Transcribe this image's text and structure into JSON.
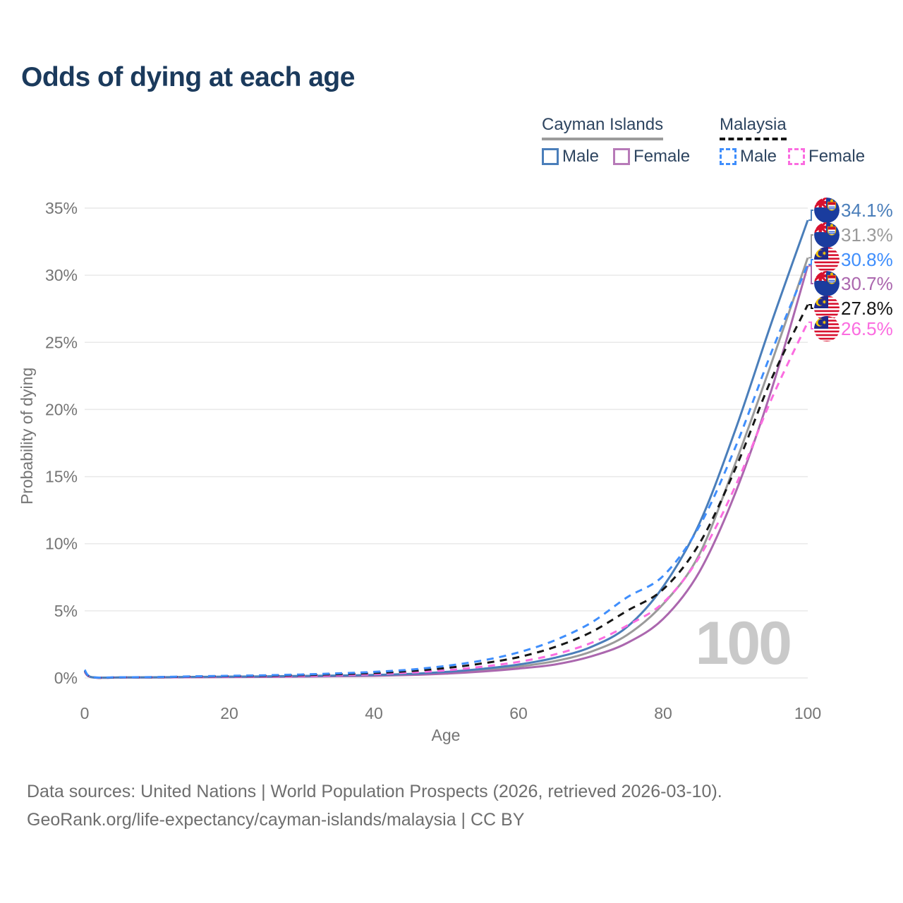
{
  "title": "Odds of dying at each age",
  "legend": {
    "groups": [
      {
        "label": "Cayman Islands",
        "line_style": "solid",
        "underline_color": "#9b9b9b",
        "items": [
          {
            "label": "Male",
            "color": "#4a7eba"
          },
          {
            "label": "Female",
            "color": "#b77ab8"
          }
        ]
      },
      {
        "label": "Malaysia",
        "line_style": "dashed",
        "underline_color": "#151515",
        "items": [
          {
            "label": "Male",
            "color": "#3f8efc"
          },
          {
            "label": "Female",
            "color": "#fb6ce0"
          }
        ]
      }
    ]
  },
  "chart_data": {
    "type": "line",
    "title": "Odds of dying at each age",
    "xlabel": "Age",
    "ylabel": "Probability of dying",
    "xlim": [
      0,
      100
    ],
    "ylim": [
      0,
      35
    ],
    "x_ticks": [
      0,
      20,
      40,
      60,
      80,
      100
    ],
    "y_ticks": [
      "0%",
      "5%",
      "10%",
      "15%",
      "20%",
      "25%",
      "30%",
      "35%"
    ],
    "grid": "horizontal",
    "legend_position": "top-right",
    "watermark": "100",
    "x": [
      0,
      1,
      5,
      10,
      15,
      20,
      25,
      30,
      35,
      40,
      45,
      50,
      55,
      60,
      65,
      70,
      75,
      80,
      85,
      90,
      95,
      100
    ],
    "series": [
      {
        "name": "Cayman Islands Male",
        "style": "solid",
        "color": "#4a7eba",
        "end_value_pct": 34.1,
        "values": [
          0.55,
          0.06,
          0.04,
          0.05,
          0.08,
          0.1,
          0.12,
          0.15,
          0.18,
          0.22,
          0.3,
          0.45,
          0.68,
          1.0,
          1.5,
          2.3,
          3.8,
          6.8,
          11.5,
          18.5,
          26.5,
          34.1
        ]
      },
      {
        "name": "Cayman Islands Both sexes",
        "style": "solid",
        "color": "#9a9a9a",
        "end_value_pct": 31.3,
        "values": [
          0.5,
          0.05,
          0.04,
          0.04,
          0.07,
          0.09,
          0.1,
          0.13,
          0.16,
          0.19,
          0.26,
          0.38,
          0.57,
          0.85,
          1.25,
          1.95,
          3.2,
          5.5,
          9.2,
          16.0,
          23.5,
          31.3
        ]
      },
      {
        "name": "Cayman Islands Female",
        "style": "solid",
        "color": "#ab67ae",
        "end_value_pct": 30.7,
        "values": [
          0.45,
          0.05,
          0.03,
          0.04,
          0.05,
          0.07,
          0.08,
          0.1,
          0.13,
          0.16,
          0.22,
          0.32,
          0.48,
          0.7,
          1.0,
          1.6,
          2.6,
          4.4,
          7.9,
          13.8,
          21.5,
          30.7
        ]
      },
      {
        "name": "Malaysia Male",
        "style": "dashed",
        "color": "#3f8efc",
        "end_value_pct": 30.8,
        "values": [
          0.6,
          0.07,
          0.05,
          0.07,
          0.12,
          0.16,
          0.2,
          0.26,
          0.34,
          0.45,
          0.62,
          0.9,
          1.3,
          1.9,
          2.8,
          4.1,
          6.0,
          7.6,
          11.3,
          17.2,
          24.3,
          30.8
        ]
      },
      {
        "name": "Malaysia Both sexes",
        "style": "dashed",
        "color": "#161616",
        "end_value_pct": 27.8,
        "values": [
          0.55,
          0.06,
          0.04,
          0.06,
          0.1,
          0.13,
          0.16,
          0.21,
          0.28,
          0.37,
          0.51,
          0.74,
          1.08,
          1.55,
          2.3,
          3.4,
          5.0,
          6.6,
          10.0,
          15.6,
          22.3,
          27.8
        ]
      },
      {
        "name": "Malaysia Female",
        "style": "dashed",
        "color": "#fb6ce0",
        "end_value_pct": 26.5,
        "values": [
          0.5,
          0.05,
          0.04,
          0.05,
          0.07,
          0.1,
          0.12,
          0.15,
          0.2,
          0.28,
          0.4,
          0.57,
          0.84,
          1.2,
          1.75,
          2.6,
          3.9,
          5.6,
          9.0,
          14.3,
          20.8,
          26.5
        ]
      }
    ],
    "end_labels": [
      {
        "flag": "cayman-islands",
        "value": "34.1%",
        "color": "#4a7eba",
        "y_pct": 34.1
      },
      {
        "flag": "cayman-islands",
        "value": "31.3%",
        "color": "#9a9a9a",
        "y_pct": 31.3
      },
      {
        "flag": "malaysia",
        "value": "30.8%",
        "color": "#3f8efc",
        "y_pct": 30.8
      },
      {
        "flag": "cayman-islands",
        "value": "30.7%",
        "color": "#ab67ae",
        "y_pct": 30.7
      },
      {
        "flag": "malaysia",
        "value": "27.8%",
        "color": "#161616",
        "y_pct": 27.8
      },
      {
        "flag": "malaysia",
        "value": "26.5%",
        "color": "#fb6ce0",
        "y_pct": 26.5
      }
    ]
  },
  "footer": {
    "line1": "Data sources: United Nations | World Population Prospects (2026, retrieved 2026-03-10).",
    "line2": "GeoRank.org/life-expectancy/cayman-islands/malaysia | CC BY"
  }
}
